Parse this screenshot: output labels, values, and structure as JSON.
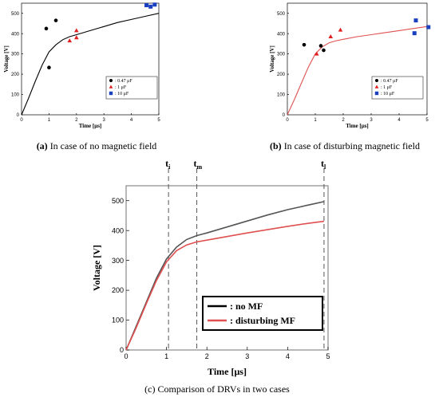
{
  "chart_data": [
    {
      "type": "scatter",
      "caption": {
        "letter": "(a)",
        "text": " In case of no magnetic field"
      },
      "xlabel": "Time [μs]",
      "ylabel": "Voltage [V]",
      "xlim": [
        0,
        5
      ],
      "ylim": [
        0,
        550
      ],
      "xticks": [
        0,
        1,
        2,
        3,
        4,
        5
      ],
      "yticks": [
        0,
        100,
        200,
        300,
        400,
        500
      ],
      "grid": false,
      "legend_position": "bottom-right",
      "series": [
        {
          "name": ": 0.47 μF",
          "marker": "circle",
          "color": "#000000",
          "x": [
            0.9,
            1.0,
            1.25
          ],
          "y": [
            425,
            233,
            465
          ]
        },
        {
          "name": ": 1 μF",
          "marker": "triangle",
          "color": "#e02020",
          "x": [
            1.75,
            2.0,
            2.0
          ],
          "y": [
            365,
            380,
            415
          ]
        },
        {
          "name": ": 10 μF",
          "marker": "square",
          "color": "#1a3fbf",
          "x": [
            4.55,
            4.7,
            4.85
          ],
          "y": [
            540,
            533,
            543
          ]
        }
      ],
      "fit_curve": {
        "color": "#000000",
        "x": [
          0,
          0.25,
          0.5,
          0.75,
          1.0,
          1.25,
          1.5,
          1.75,
          2.0,
          2.5,
          3.0,
          3.5,
          4.0,
          4.5,
          5.0
        ],
        "y": [
          0,
          80,
          165,
          245,
          310,
          345,
          370,
          385,
          395,
          415,
          435,
          455,
          470,
          485,
          500
        ]
      }
    },
    {
      "type": "scatter",
      "caption": {
        "letter": "(b)",
        "text": " In case of disturbing magnetic field"
      },
      "xlabel": "Time [μs]",
      "ylabel": "Voltage [V]",
      "xlim": [
        0,
        5
      ],
      "ylim": [
        0,
        550
      ],
      "xticks": [
        0,
        1,
        2,
        3,
        4,
        5
      ],
      "yticks": [
        0,
        100,
        200,
        300,
        400,
        500
      ],
      "grid": false,
      "legend_position": "bottom-right",
      "series": [
        {
          "name": ": 0.47 μF",
          "marker": "circle",
          "color": "#000000",
          "x": [
            0.6,
            1.2,
            1.3
          ],
          "y": [
            345,
            340,
            318
          ]
        },
        {
          "name": ": 1 μF",
          "marker": "triangle",
          "color": "#e02020",
          "x": [
            1.05,
            1.55,
            1.9
          ],
          "y": [
            300,
            385,
            418
          ]
        },
        {
          "name": ": 10 μF",
          "marker": "square",
          "color": "#1a3fbf",
          "x": [
            4.55,
            4.6,
            5.05
          ],
          "y": [
            402,
            465,
            432
          ]
        }
      ],
      "fit_curve": {
        "color": "#e05050",
        "x": [
          0,
          0.25,
          0.5,
          0.75,
          1.0,
          1.25,
          1.5,
          1.75,
          2.0,
          2.5,
          3.0,
          3.5,
          4.0,
          4.5,
          5.0
        ],
        "y": [
          0,
          75,
          155,
          235,
          300,
          335,
          355,
          365,
          372,
          385,
          395,
          405,
          415,
          425,
          435
        ]
      }
    },
    {
      "type": "line",
      "caption": {
        "text": "(c) Comparison of DRVs in two cases"
      },
      "xlabel": "Time [μs]",
      "ylabel": "Voltage [V]",
      "xlim": [
        0,
        5
      ],
      "ylim": [
        0,
        550
      ],
      "xticks": [
        0,
        1,
        2,
        3,
        4,
        5
      ],
      "yticks": [
        0,
        100,
        200,
        300,
        400,
        500
      ],
      "grid": false,
      "legend_position": "bottom-right",
      "series": [
        {
          "name": ": no MF",
          "color": "#555555",
          "legend_color": "#000000",
          "x": [
            0,
            0.25,
            0.5,
            0.75,
            1.0,
            1.25,
            1.5,
            1.75,
            2.0,
            2.5,
            3.0,
            3.5,
            4.0,
            4.5,
            4.9
          ],
          "y": [
            0,
            80,
            160,
            240,
            305,
            345,
            370,
            383,
            392,
            412,
            432,
            452,
            470,
            485,
            497
          ]
        },
        {
          "name": ": disturbing MF",
          "color": "#e05050",
          "legend_color": "#e05050",
          "x": [
            0,
            0.25,
            0.5,
            0.75,
            1.0,
            1.25,
            1.5,
            1.75,
            2.0,
            2.5,
            3.0,
            3.5,
            4.0,
            4.5,
            4.9
          ],
          "y": [
            0,
            75,
            155,
            232,
            295,
            333,
            352,
            362,
            368,
            380,
            392,
            403,
            414,
            424,
            431
          ]
        }
      ],
      "vlines": [
        {
          "label": "t",
          "sub": "i",
          "x": 1.05
        },
        {
          "label": "t",
          "sub": "m",
          "x": 1.75
        },
        {
          "label": "t",
          "sub": "l",
          "x": 4.9
        }
      ]
    }
  ]
}
